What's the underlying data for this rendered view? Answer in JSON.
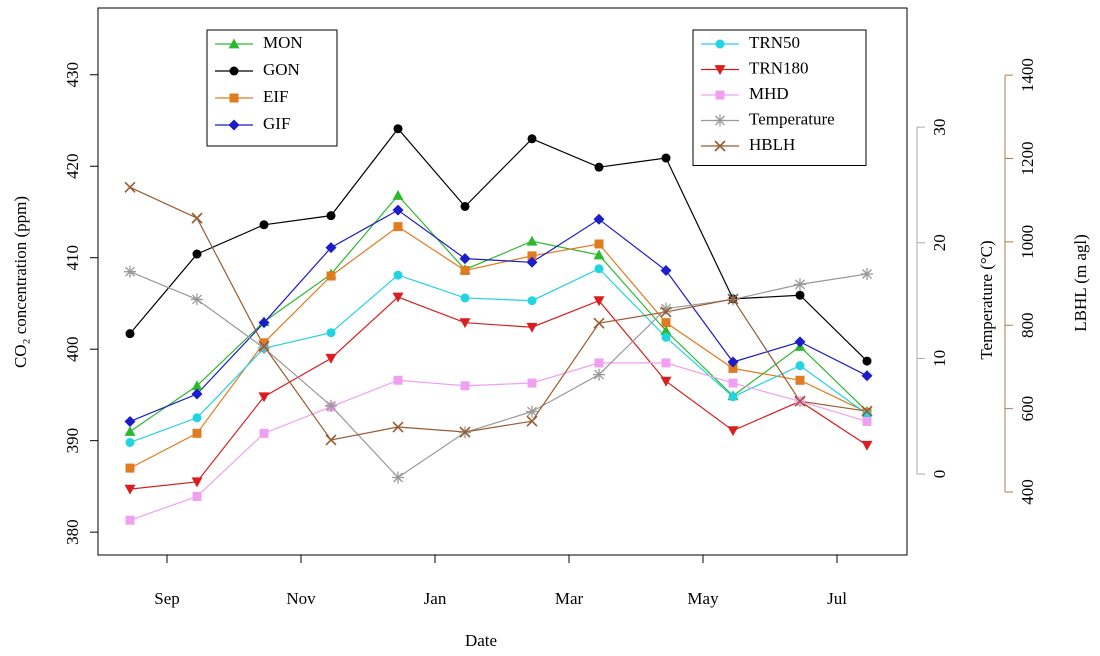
{
  "chart_data": {
    "type": "line",
    "x_label": "Date",
    "y_label": "CO₂ concentration (ppm)",
    "y2_label": "Temperature (°C)",
    "y3_label": "LBHL (m agl)",
    "y2_color": "#aaaaaa",
    "y3_color": "#a87d50",
    "categories": [
      null,
      "Sep",
      null,
      "Nov",
      null,
      "Jan",
      null,
      "Mar",
      null,
      "May",
      null,
      "Jul"
    ],
    "ylim": [
      377.5,
      437.3
    ],
    "yticks": [
      380,
      390,
      400,
      410,
      420,
      430
    ],
    "y2lim": [
      -7,
      40.3
    ],
    "y2ticks": [
      0,
      10,
      20,
      30
    ],
    "y3lim": [
      249,
      1561
    ],
    "y3ticks": [
      400,
      600,
      800,
      1000,
      1200,
      1400
    ],
    "series": [
      {
        "name": "MON",
        "color": "#2db92d",
        "marker": "triangle",
        "legend": "top-left",
        "values": [
          391.0,
          396.0,
          403.0,
          408.2,
          416.8,
          408.7,
          411.8,
          410.3,
          402.0,
          394.9,
          400.3,
          393.2
        ]
      },
      {
        "name": "GON",
        "color": "#000000",
        "marker": "circle",
        "legend": "top-left",
        "values": [
          401.7,
          410.4,
          413.6,
          414.6,
          424.1,
          415.6,
          423.0,
          419.9,
          420.9,
          405.5,
          405.9,
          398.7
        ]
      },
      {
        "name": "EIF",
        "color": "#e07b20",
        "marker": "square",
        "legend": "top-left",
        "values": [
          387.0,
          390.8,
          400.7,
          408.0,
          413.4,
          408.6,
          410.2,
          411.5,
          402.9,
          397.9,
          396.6,
          393.1
        ]
      },
      {
        "name": "GIF",
        "color": "#1c1cc8",
        "marker": "diamond",
        "legend": "top-left",
        "values": [
          392.1,
          395.1,
          402.9,
          411.1,
          415.2,
          409.9,
          409.5,
          414.2,
          408.6,
          398.6,
          400.8,
          397.1
        ]
      },
      {
        "name": "TRN50",
        "color": "#22d3e0",
        "marker": "circle",
        "legend": "top-right",
        "values": [
          389.8,
          392.5,
          400.1,
          401.8,
          408.1,
          405.6,
          405.3,
          408.8,
          401.3,
          394.8,
          398.2,
          392.9
        ]
      },
      {
        "name": "TRN180",
        "color": "#d81e1e",
        "marker": "triangle-down",
        "legend": "top-right",
        "values": [
          384.7,
          385.5,
          394.8,
          399.0,
          405.7,
          402.9,
          402.4,
          405.3,
          396.5,
          391.1,
          394.3,
          389.5
        ]
      },
      {
        "name": "MHD",
        "color": "#f0a0f0",
        "marker": "square",
        "legend": "top-right",
        "values": [
          381.3,
          383.9,
          390.8,
          393.7,
          396.6,
          396.0,
          396.3,
          398.5,
          398.5,
          396.3,
          394.3,
          392.1
        ]
      },
      {
        "name": "Temperature",
        "color": "#999999",
        "marker": "asterisk",
        "legend": "top-right",
        "axis": "y2",
        "values": [
          17.5,
          15.1,
          10.9,
          5.9,
          -0.3,
          3.6,
          5.4,
          8.6,
          14.3,
          15.1,
          16.4,
          17.3
        ]
      },
      {
        "name": "HBLH",
        "color": "#9b5a32",
        "marker": "cross",
        "legend": "top-right",
        "axis": "y3",
        "values": [
          1131,
          1057,
          750,
          525,
          556,
          544,
          570,
          805,
          832,
          863,
          618,
          594
        ]
      }
    ]
  }
}
